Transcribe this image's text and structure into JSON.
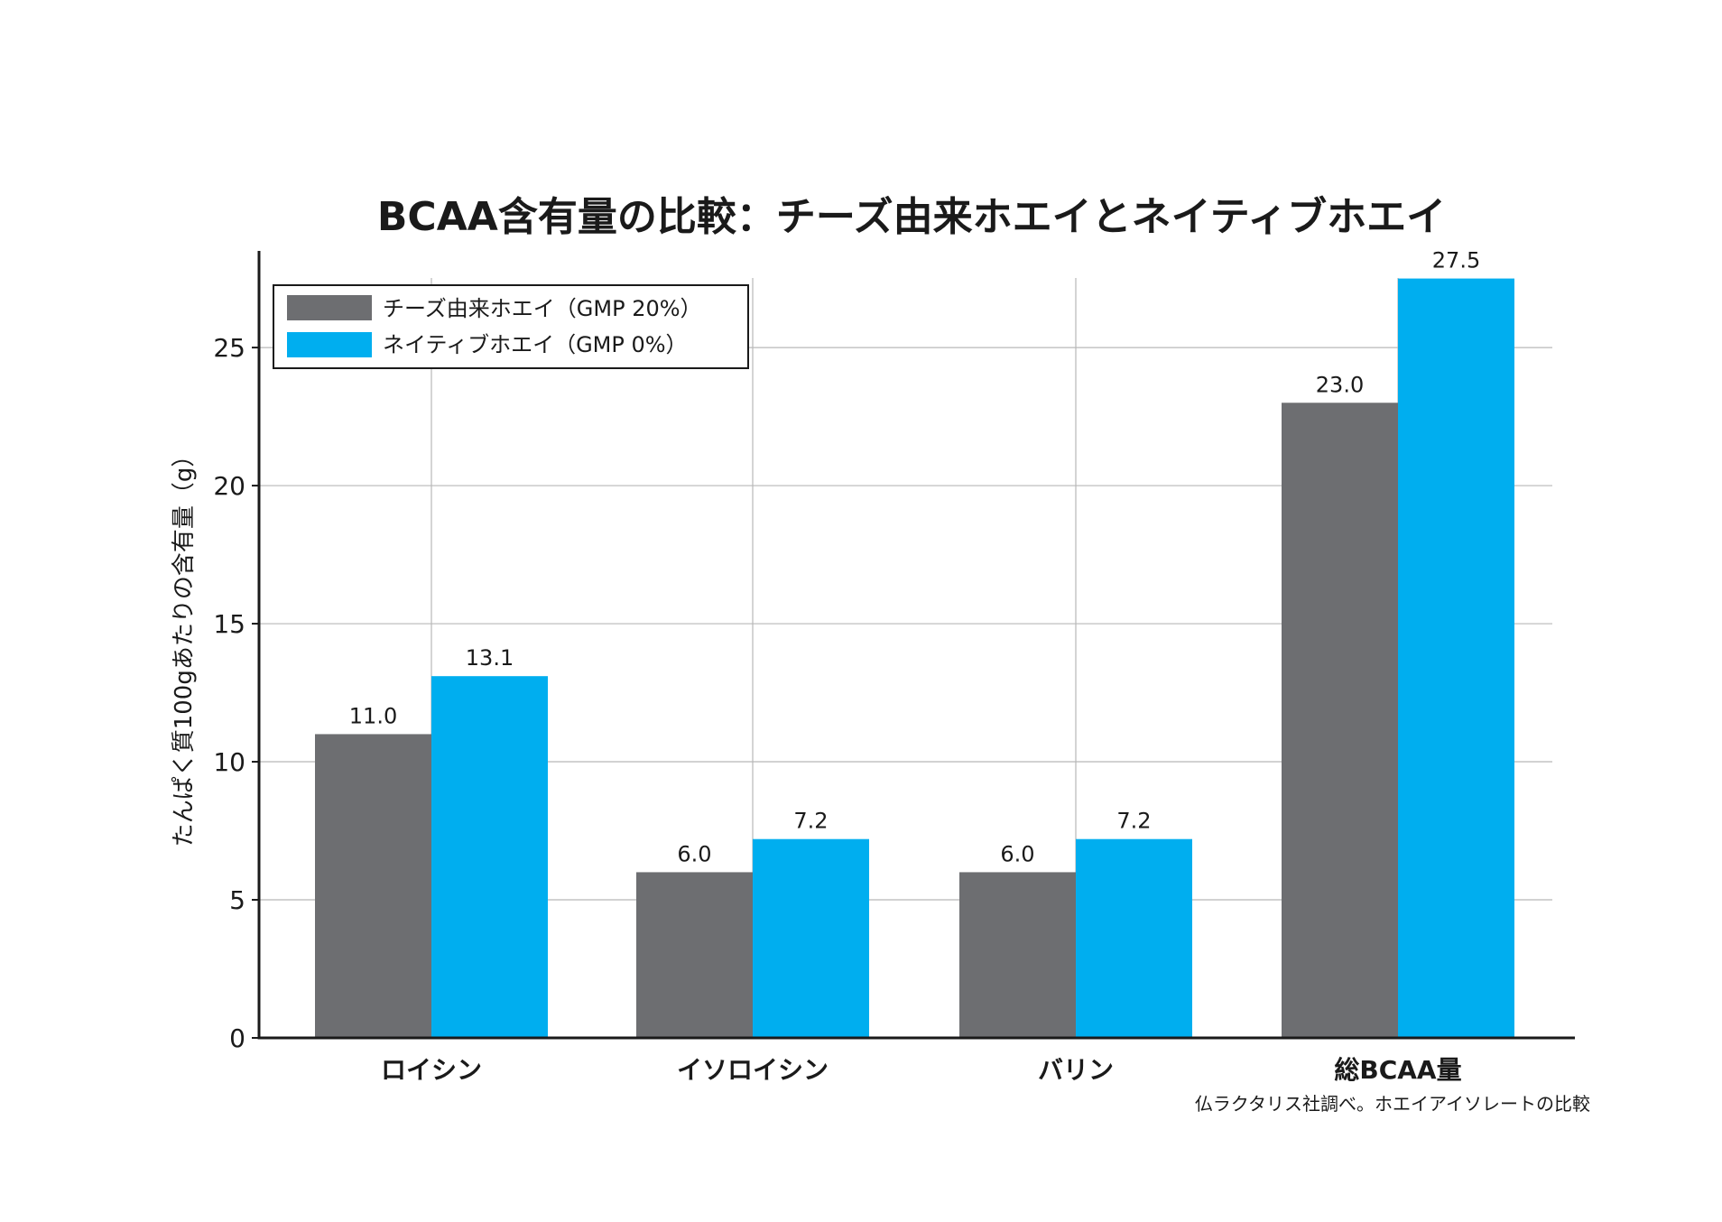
{
  "chart_data": {
    "type": "bar",
    "title": "BCAA含有量の比較：チーズ由来ホエイとネイティブホエイ",
    "xlabel": "",
    "ylabel": "たんぱく質100gあたりの含有量（g）",
    "categories": [
      "ロイシン",
      "イソロイシン",
      "バリン",
      "総BCAA量"
    ],
    "series": [
      {
        "name": "チーズ由来ホエイ（GMP 20%）",
        "color": "#6d6e71",
        "values": [
          11.0,
          6.0,
          6.0,
          23.0
        ],
        "labels": [
          "11.0",
          "6.0",
          "6.0",
          "23.0"
        ]
      },
      {
        "name": "ネイティブホエイ（GMP 0%）",
        "color": "#00aeef",
        "values": [
          13.1,
          7.2,
          7.2,
          27.5
        ],
        "labels": [
          "13.1",
          "7.2",
          "7.2",
          "27.5"
        ]
      }
    ],
    "ylim": [
      0,
      28.5
    ],
    "yticks": [
      0,
      5,
      10,
      15,
      20,
      25
    ],
    "ytick_labels": [
      "0",
      "5",
      "10",
      "15",
      "20",
      "25"
    ],
    "grid": true,
    "legend_position": "top-left",
    "source": "仏ラクタリス社調べ。ホエイアイソレートの比較"
  }
}
